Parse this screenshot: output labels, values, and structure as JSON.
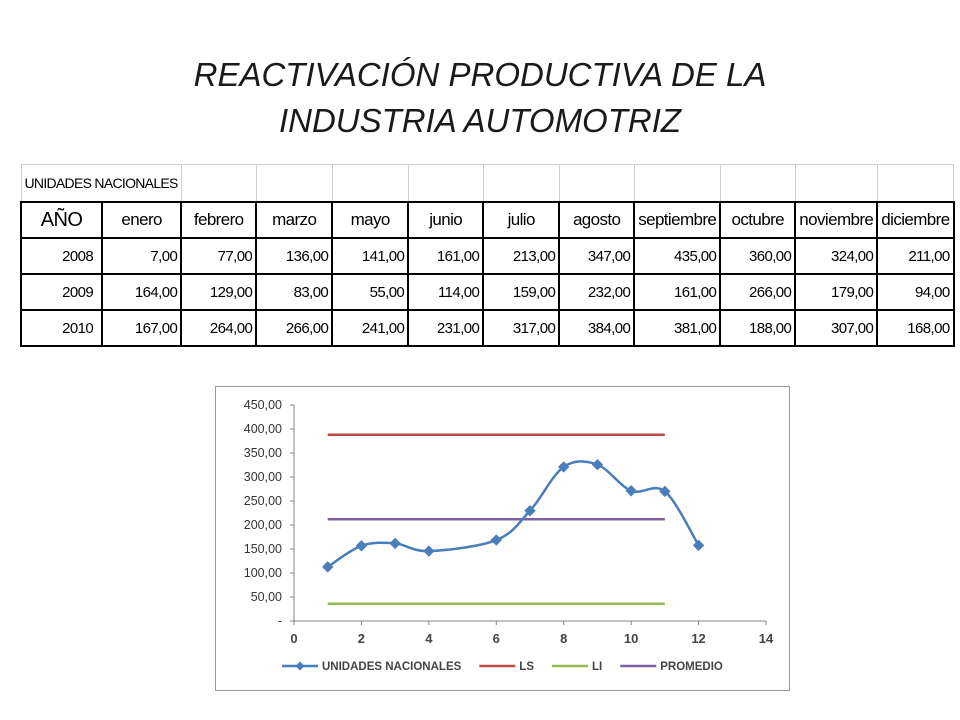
{
  "title_lines": [
    "REACTIVACIÓN PRODUCTIVA DE LA",
    "INDUSTRIA AUTOMOTRIZ"
  ],
  "table": {
    "caption": "UNIDADES NACIONALES",
    "headers": [
      "AÑO",
      "enero",
      "febrero",
      "marzo",
      "mayo",
      "junio",
      "julio",
      "agosto",
      "septiembre",
      "octubre",
      "noviembre",
      "diciembre"
    ],
    "rows": [
      [
        "2008",
        "7,00",
        "77,00",
        "136,00",
        "141,00",
        "161,00",
        "213,00",
        "347,00",
        "435,00",
        "360,00",
        "324,00",
        "211,00"
      ],
      [
        "2009",
        "164,00",
        "129,00",
        "83,00",
        "55,00",
        "114,00",
        "159,00",
        "232,00",
        "161,00",
        "266,00",
        "179,00",
        "94,00"
      ],
      [
        "2010",
        "167,00",
        "264,00",
        "266,00",
        "241,00",
        "231,00",
        "317,00",
        "384,00",
        "381,00",
        "188,00",
        "307,00",
        "168,00"
      ]
    ]
  },
  "chart_data": {
    "type": "line",
    "title": "",
    "xlabel": "",
    "ylabel": "",
    "xlim": [
      0,
      14
    ],
    "ylim": [
      0,
      450
    ],
    "x_ticks": [
      0,
      2,
      4,
      6,
      8,
      10,
      12,
      14
    ],
    "x_tick_labels": [
      "0",
      "2",
      "4",
      "6",
      "8",
      "10",
      "12",
      "14"
    ],
    "y_ticks": [
      0,
      50,
      100,
      150,
      200,
      250,
      300,
      350,
      400,
      450
    ],
    "y_tick_labels": [
      "-",
      "50,00",
      "100,00",
      "150,00",
      "200,00",
      "250,00",
      "300,00",
      "350,00",
      "400,00",
      "450,00"
    ],
    "grid": false,
    "legend_position": "bottom",
    "series": [
      {
        "name": "UNIDADES NACIONALES",
        "color": "#4a7ebb",
        "marker": "diamond",
        "smooth": true,
        "x": [
          1,
          2,
          3,
          4,
          6,
          7,
          8,
          9,
          10,
          11,
          12
        ],
        "y": [
          112.67,
          156.67,
          161.67,
          145.67,
          168.67,
          229.67,
          321.0,
          325.67,
          271.33,
          270.0,
          157.67
        ]
      },
      {
        "name": "LS",
        "color": "#be4b48",
        "marker": "none",
        "x": [
          1,
          11
        ],
        "y": [
          388,
          388
        ]
      },
      {
        "name": "LI",
        "color": "#98b954",
        "marker": "none",
        "x": [
          1,
          11
        ],
        "y": [
          36,
          36
        ]
      },
      {
        "name": "PROMEDIO",
        "color": "#7d60a0",
        "marker": "none",
        "x": [
          1,
          11
        ],
        "y": [
          212,
          212
        ]
      }
    ]
  }
}
